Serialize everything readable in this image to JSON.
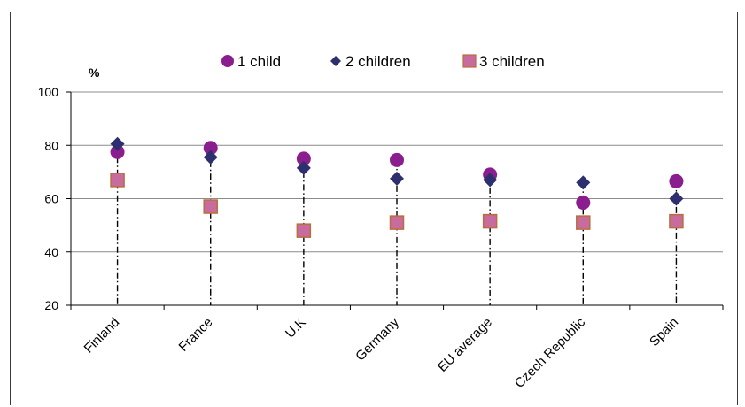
{
  "chart_data": {
    "type": "scatter",
    "unit_label": "%",
    "categories": [
      "Finland",
      "France",
      "U.K",
      "Germany",
      "EU average",
      "Czech Republic",
      "Spain"
    ],
    "ylim": [
      20,
      100
    ],
    "yticks": [
      20,
      40,
      60,
      80,
      100
    ],
    "grid": true,
    "legend_position": "top",
    "series": [
      {
        "name": "1 child",
        "marker": "circle",
        "color": "#8B1E8F",
        "values": [
          77.5,
          79,
          75,
          74.5,
          69,
          58.5,
          66.5
        ]
      },
      {
        "name": "2 children",
        "marker": "diamond",
        "color": "#2E2F6E",
        "values": [
          80.5,
          75.5,
          71.5,
          67.5,
          67,
          66,
          60
        ]
      },
      {
        "name": "3 children",
        "marker": "square",
        "color": "#C86B9E",
        "values": [
          67,
          57,
          48,
          51,
          51.5,
          51,
          51.5
        ]
      }
    ]
  }
}
